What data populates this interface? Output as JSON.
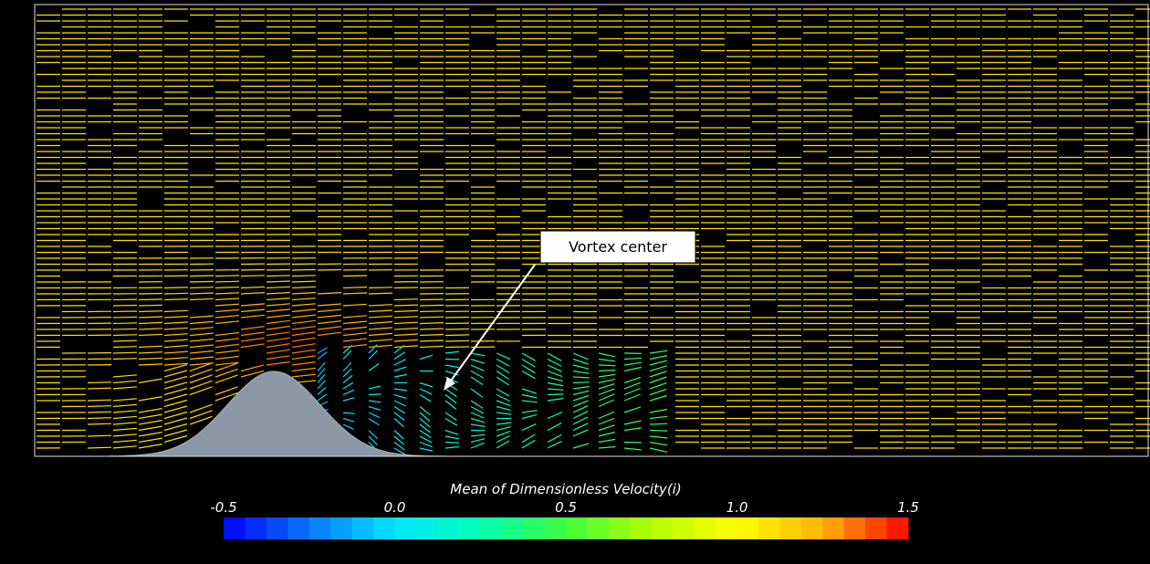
{
  "annotation": "Vortex center",
  "colorbar": {
    "title": "Mean of Dimensionless Velocity(i)",
    "lim": [
      -0.5,
      1.5
    ],
    "ticks": [
      {
        "value": -0.5,
        "label": "-0.5"
      },
      {
        "value": 0,
        "label": "0.0"
      },
      {
        "value": 0.5,
        "label": "0.5"
      },
      {
        "value": 1,
        "label": "1.0"
      },
      {
        "value": 1.5,
        "label": "1.5"
      }
    ],
    "bands": 32,
    "colors": [
      "#0000ff",
      "#0a78ff",
      "#00e6ff",
      "#00ffb4",
      "#3cff3c",
      "#b4ff00",
      "#ffff00",
      "#ffb400",
      "#ff0000"
    ]
  }
}
